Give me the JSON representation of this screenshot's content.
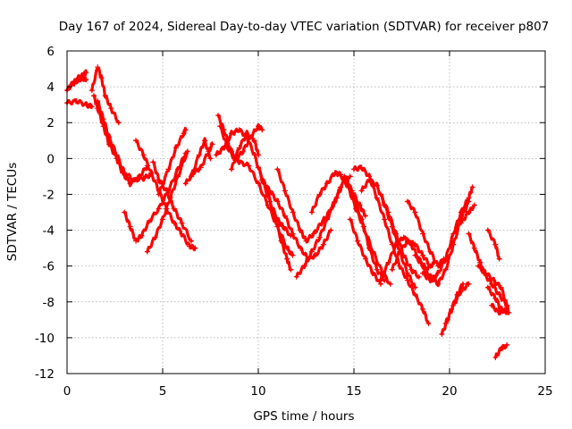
{
  "chart_data": {
    "type": "scatter",
    "title": "Day 167 of 2024, Sidereal Day-to-day VTEC variation (SDTVAR) for receiver p807",
    "xlabel": "GPS time / hours",
    "ylabel": "SDTVAR / TECUs",
    "xlim": [
      0,
      25
    ],
    "ylim": [
      -12,
      6
    ],
    "xticks": [
      0,
      5,
      10,
      15,
      20,
      25
    ],
    "yticks": [
      -12,
      -10,
      -8,
      -6,
      -4,
      -2,
      0,
      2,
      4,
      6
    ],
    "grid": true,
    "marker": "+",
    "color": "#ff0000",
    "series": [
      {
        "name": "s1",
        "points": [
          [
            0.0,
            3.1
          ],
          [
            0.5,
            3.2
          ],
          [
            1.0,
            3.0
          ],
          [
            1.3,
            2.9
          ]
        ]
      },
      {
        "name": "s2",
        "points": [
          [
            0.0,
            3.8
          ],
          [
            0.3,
            4.2
          ],
          [
            0.6,
            4.5
          ],
          [
            0.9,
            4.7
          ],
          [
            1.0,
            4.8
          ]
        ]
      },
      {
        "name": "s3",
        "points": [
          [
            0.2,
            4.1
          ],
          [
            0.5,
            4.3
          ],
          [
            0.8,
            4.5
          ],
          [
            1.0,
            4.4
          ]
        ]
      },
      {
        "name": "s4",
        "points": [
          [
            1.3,
            3.8
          ],
          [
            1.6,
            5.1
          ],
          [
            1.8,
            4.5
          ],
          [
            2.0,
            3.5
          ],
          [
            2.3,
            2.8
          ],
          [
            2.7,
            2.0
          ]
        ]
      },
      {
        "name": "s5",
        "points": [
          [
            1.4,
            3.5
          ],
          [
            1.6,
            2.8
          ],
          [
            1.9,
            1.8
          ],
          [
            2.2,
            0.8
          ],
          [
            2.6,
            0.0
          ],
          [
            2.9,
            -0.8
          ],
          [
            3.3,
            -1.4
          ],
          [
            3.8,
            -1.0
          ],
          [
            4.2,
            -0.4
          ]
        ]
      },
      {
        "name": "s6",
        "points": [
          [
            1.6,
            3.2
          ],
          [
            1.9,
            2.2
          ],
          [
            2.2,
            1.2
          ],
          [
            2.6,
            0.2
          ],
          [
            3.0,
            -0.8
          ],
          [
            3.5,
            -1.2
          ],
          [
            4.0,
            -1.1
          ],
          [
            4.4,
            -0.9
          ]
        ]
      },
      {
        "name": "s7",
        "points": [
          [
            3.6,
            1.0
          ],
          [
            4.0,
            0.2
          ],
          [
            4.4,
            -0.8
          ],
          [
            4.8,
            -1.8
          ],
          [
            5.2,
            -2.8
          ],
          [
            5.6,
            -3.6
          ],
          [
            6.0,
            -4.2
          ],
          [
            6.4,
            -4.9
          ],
          [
            6.7,
            -5.0
          ]
        ]
      },
      {
        "name": "s8",
        "points": [
          [
            3.0,
            -3.0
          ],
          [
            3.3,
            -3.8
          ],
          [
            3.6,
            -4.6
          ],
          [
            3.9,
            -4.3
          ],
          [
            4.3,
            -3.5
          ],
          [
            4.8,
            -2.8
          ],
          [
            5.3,
            -1.8
          ],
          [
            5.8,
            -0.6
          ],
          [
            6.2,
            0.3
          ]
        ]
      },
      {
        "name": "s9",
        "points": [
          [
            4.2,
            -5.2
          ],
          [
            4.6,
            -4.4
          ],
          [
            5.0,
            -3.4
          ],
          [
            5.4,
            -2.2
          ],
          [
            5.8,
            -1.0
          ],
          [
            6.3,
            0.4
          ]
        ]
      },
      {
        "name": "s10",
        "points": [
          [
            4.5,
            -0.2
          ],
          [
            4.8,
            -1.2
          ],
          [
            5.2,
            -1.8
          ],
          [
            5.6,
            -2.8
          ],
          [
            6.0,
            -3.6
          ],
          [
            6.5,
            -4.6
          ]
        ]
      },
      {
        "name": "s11",
        "points": [
          [
            4.8,
            -2.0
          ],
          [
            5.3,
            -0.6
          ],
          [
            5.7,
            0.6
          ],
          [
            6.1,
            1.4
          ],
          [
            6.2,
            1.6
          ]
        ]
      },
      {
        "name": "s12",
        "points": [
          [
            6.2,
            -1.4
          ],
          [
            6.6,
            -0.8
          ],
          [
            7.0,
            -0.5
          ],
          [
            7.4,
            0.4
          ],
          [
            7.6,
            0.8
          ]
        ]
      },
      {
        "name": "s13",
        "points": [
          [
            6.5,
            -1.0
          ],
          [
            6.9,
            0.2
          ],
          [
            7.2,
            1.0
          ],
          [
            7.5,
            0.0
          ]
        ]
      },
      {
        "name": "s14",
        "points": [
          [
            7.8,
            0.2
          ],
          [
            8.2,
            0.6
          ],
          [
            8.6,
            1.4
          ],
          [
            9.0,
            1.6
          ],
          [
            9.4,
            1.2
          ],
          [
            9.8,
            0.2
          ],
          [
            10.2,
            -1.2
          ],
          [
            10.6,
            -2.4
          ],
          [
            11.0,
            -3.4
          ],
          [
            11.3,
            -3.8
          ],
          [
            11.7,
            -4.3
          ]
        ]
      },
      {
        "name": "s15",
        "points": [
          [
            7.9,
            2.4
          ],
          [
            8.2,
            1.6
          ],
          [
            8.6,
            0.4
          ],
          [
            9.0,
            -0.2
          ],
          [
            9.5,
            -0.4
          ],
          [
            10.0,
            -1.4
          ],
          [
            10.5,
            -2.6
          ],
          [
            11.0,
            -3.8
          ],
          [
            11.5,
            -5.0
          ],
          [
            11.8,
            -5.4
          ]
        ]
      },
      {
        "name": "s16",
        "points": [
          [
            8.0,
            1.8
          ],
          [
            8.4,
            0.6
          ],
          [
            8.8,
            -0.1
          ],
          [
            9.2,
            0.4
          ],
          [
            9.6,
            1.2
          ],
          [
            10.0,
            1.8
          ],
          [
            10.2,
            1.6
          ]
        ]
      },
      {
        "name": "s17",
        "points": [
          [
            8.6,
            -0.6
          ],
          [
            9.0,
            0.6
          ],
          [
            9.4,
            1.4
          ],
          [
            9.8,
            1.0
          ],
          [
            10.0,
            0.2
          ]
        ]
      },
      {
        "name": "s18",
        "points": [
          [
            10.0,
            -0.5
          ],
          [
            10.4,
            -1.6
          ],
          [
            10.8,
            -3.0
          ],
          [
            11.2,
            -4.6
          ],
          [
            11.5,
            -5.6
          ],
          [
            11.7,
            -6.2
          ]
        ]
      },
      {
        "name": "s19",
        "points": [
          [
            10.2,
            -1.2
          ],
          [
            10.6,
            -1.8
          ],
          [
            11.0,
            -2.4
          ],
          [
            11.4,
            -3.2
          ],
          [
            11.8,
            -4.2
          ],
          [
            12.2,
            -5.0
          ],
          [
            12.6,
            -5.6
          ],
          [
            13.0,
            -5.4
          ],
          [
            13.4,
            -4.8
          ],
          [
            13.8,
            -4.0
          ]
        ]
      },
      {
        "name": "s20",
        "points": [
          [
            11.0,
            -0.6
          ],
          [
            11.4,
            -1.8
          ],
          [
            11.8,
            -3.0
          ],
          [
            12.2,
            -4.0
          ],
          [
            12.5,
            -4.6
          ],
          [
            12.9,
            -4.2
          ],
          [
            13.3,
            -3.6
          ],
          [
            13.7,
            -3.0
          ],
          [
            14.1,
            -2.2
          ],
          [
            14.5,
            -1.2
          ],
          [
            14.8,
            -1.0
          ]
        ]
      },
      {
        "name": "s21",
        "points": [
          [
            12.0,
            -6.6
          ],
          [
            12.4,
            -6.0
          ],
          [
            12.8,
            -5.2
          ],
          [
            13.2,
            -4.4
          ],
          [
            13.6,
            -3.4
          ],
          [
            14.0,
            -2.4
          ],
          [
            14.3,
            -1.6
          ]
        ]
      },
      {
        "name": "s22",
        "points": [
          [
            12.8,
            -3.0
          ],
          [
            13.2,
            -2.0
          ],
          [
            13.6,
            -1.4
          ],
          [
            14.0,
            -0.8
          ],
          [
            14.3,
            -0.9
          ],
          [
            14.7,
            -1.6
          ],
          [
            15.1,
            -2.8
          ],
          [
            15.5,
            -3.8
          ],
          [
            16.0,
            -5.2
          ],
          [
            16.5,
            -6.4
          ],
          [
            16.9,
            -7.0
          ]
        ]
      },
      {
        "name": "s23",
        "points": [
          [
            14.6,
            -1.2
          ],
          [
            15.0,
            -2.2
          ],
          [
            15.4,
            -3.4
          ],
          [
            15.8,
            -5.0
          ],
          [
            16.2,
            -6.2
          ],
          [
            16.6,
            -6.8
          ]
        ]
      },
      {
        "name": "s24",
        "points": [
          [
            14.8,
            -3.4
          ],
          [
            15.2,
            -4.6
          ],
          [
            15.6,
            -5.6
          ],
          [
            16.0,
            -6.4
          ],
          [
            16.4,
            -7.0
          ]
        ]
      },
      {
        "name": "s25",
        "points": [
          [
            14.5,
            -1.0
          ],
          [
            14.9,
            -1.8
          ],
          [
            15.3,
            -2.6
          ],
          [
            15.6,
            -3.2
          ]
        ]
      },
      {
        "name": "s26",
        "points": [
          [
            15.0,
            -0.6
          ],
          [
            15.4,
            -0.5
          ],
          [
            15.8,
            -1.0
          ],
          [
            16.2,
            -2.2
          ],
          [
            16.6,
            -3.4
          ],
          [
            17.0,
            -4.8
          ],
          [
            17.4,
            -6.0
          ],
          [
            17.8,
            -6.8
          ],
          [
            18.2,
            -7.6
          ],
          [
            18.6,
            -8.4
          ],
          [
            18.9,
            -9.2
          ]
        ]
      },
      {
        "name": "s27",
        "points": [
          [
            15.4,
            -1.8
          ],
          [
            15.8,
            -1.2
          ],
          [
            16.2,
            -1.5
          ],
          [
            16.6,
            -2.6
          ],
          [
            17.0,
            -3.8
          ],
          [
            17.4,
            -5.2
          ],
          [
            17.8,
            -6.4
          ],
          [
            18.2,
            -7.2
          ]
        ]
      },
      {
        "name": "s28",
        "points": [
          [
            16.4,
            -2.0
          ],
          [
            16.8,
            -3.0
          ],
          [
            17.2,
            -4.2
          ],
          [
            17.6,
            -5.4
          ],
          [
            18.0,
            -6.2
          ],
          [
            18.4,
            -6.6
          ]
        ]
      },
      {
        "name": "s29",
        "points": [
          [
            16.4,
            -6.8
          ],
          [
            16.8,
            -5.8
          ],
          [
            17.2,
            -4.8
          ],
          [
            17.6,
            -4.4
          ],
          [
            18.0,
            -4.8
          ],
          [
            18.4,
            -5.6
          ],
          [
            18.8,
            -6.2
          ],
          [
            19.2,
            -5.8
          ]
        ]
      },
      {
        "name": "s30",
        "points": [
          [
            17.0,
            -6.2
          ],
          [
            17.4,
            -5.2
          ],
          [
            17.8,
            -4.6
          ],
          [
            18.2,
            -4.8
          ],
          [
            18.6,
            -5.4
          ],
          [
            19.0,
            -6.0
          ]
        ]
      },
      {
        "name": "s31",
        "points": [
          [
            17.8,
            -2.4
          ],
          [
            18.2,
            -3.0
          ],
          [
            18.6,
            -4.2
          ],
          [
            19.0,
            -5.2
          ],
          [
            19.4,
            -6.0
          ],
          [
            19.7,
            -5.6
          ]
        ]
      },
      {
        "name": "s32",
        "points": [
          [
            18.6,
            -6.4
          ],
          [
            19.0,
            -6.8
          ],
          [
            19.4,
            -6.4
          ],
          [
            19.8,
            -5.6
          ],
          [
            20.2,
            -4.2
          ],
          [
            20.6,
            -3.0
          ],
          [
            21.0,
            -2.2
          ],
          [
            21.2,
            -1.6
          ]
        ]
      },
      {
        "name": "s33",
        "points": [
          [
            18.2,
            -5.4
          ],
          [
            18.6,
            -6.0
          ],
          [
            19.0,
            -6.6
          ],
          [
            19.4,
            -7.0
          ],
          [
            19.8,
            -6.2
          ],
          [
            20.2,
            -4.8
          ],
          [
            20.6,
            -3.4
          ],
          [
            21.0,
            -2.4
          ]
        ]
      },
      {
        "name": "s34",
        "points": [
          [
            19.6,
            -9.8
          ],
          [
            19.9,
            -9.0
          ],
          [
            20.2,
            -8.2
          ],
          [
            20.6,
            -7.4
          ],
          [
            21.0,
            -7.0
          ]
        ]
      },
      {
        "name": "s35",
        "points": [
          [
            19.8,
            -9.2
          ],
          [
            20.1,
            -8.4
          ],
          [
            20.4,
            -7.6
          ],
          [
            20.7,
            -7.0
          ]
        ]
      },
      {
        "name": "s36",
        "points": [
          [
            20.6,
            -3.6
          ],
          [
            21.0,
            -3.0
          ],
          [
            21.3,
            -2.6
          ]
        ]
      },
      {
        "name": "s37",
        "points": [
          [
            21.0,
            -4.2
          ],
          [
            21.3,
            -5.0
          ],
          [
            21.6,
            -5.8
          ],
          [
            21.8,
            -6.4
          ]
        ]
      },
      {
        "name": "s38",
        "points": [
          [
            22.0,
            -4.0
          ],
          [
            22.4,
            -4.8
          ],
          [
            22.6,
            -5.6
          ]
        ]
      },
      {
        "name": "s39",
        "points": [
          [
            21.5,
            -6.0
          ],
          [
            21.9,
            -6.4
          ],
          [
            22.3,
            -6.8
          ],
          [
            22.7,
            -7.2
          ],
          [
            23.0,
            -8.2
          ],
          [
            23.1,
            -8.6
          ]
        ]
      },
      {
        "name": "s40",
        "points": [
          [
            21.8,
            -6.4
          ],
          [
            22.2,
            -7.0
          ],
          [
            22.6,
            -7.6
          ],
          [
            23.0,
            -8.2
          ]
        ]
      },
      {
        "name": "s41",
        "points": [
          [
            22.0,
            -7.2
          ],
          [
            22.4,
            -7.8
          ],
          [
            22.7,
            -8.4
          ],
          [
            23.0,
            -8.6
          ]
        ]
      },
      {
        "name": "s42",
        "points": [
          [
            22.2,
            -8.2
          ],
          [
            22.6,
            -8.6
          ],
          [
            22.9,
            -8.4
          ]
        ]
      },
      {
        "name": "s43",
        "points": [
          [
            22.4,
            -11.1
          ],
          [
            22.7,
            -10.6
          ],
          [
            23.0,
            -10.4
          ]
        ]
      }
    ]
  }
}
